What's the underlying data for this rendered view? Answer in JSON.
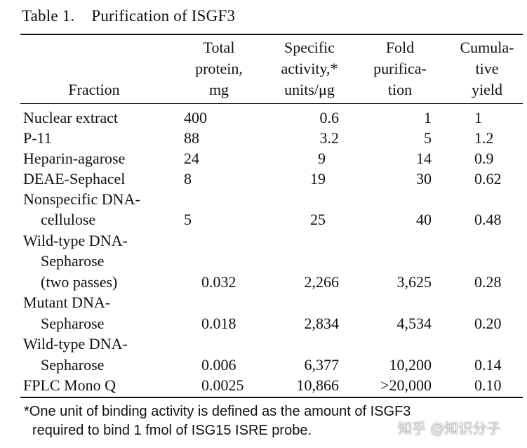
{
  "caption": {
    "number": "Table 1.",
    "title": "Purification of ISGF3"
  },
  "headers": {
    "fraction": [
      "Fraction"
    ],
    "total_protein": [
      "Total",
      "protein,",
      "mg"
    ],
    "specific_activity": [
      "Specific",
      "activity,*",
      "units/μg"
    ],
    "fold_purification": [
      "Fold",
      "purifica-",
      "tion"
    ],
    "cumulative_yield": [
      "Cumula-",
      "tive",
      "yield"
    ]
  },
  "rows": [
    {
      "fraction": [
        "Nuclear extract"
      ],
      "total": "400",
      "specific": "0.6",
      "fold": "1",
      "yield": "1"
    },
    {
      "fraction": [
        "P-11"
      ],
      "total": "88",
      "specific": "3.2",
      "fold": "5",
      "yield": "1.2"
    },
    {
      "fraction": [
        "Heparin-agarose"
      ],
      "total": "24",
      "specific": "9",
      "fold": "14",
      "yield": "0.9"
    },
    {
      "fraction": [
        "DEAE-Sephacel"
      ],
      "total": "8",
      "specific": "19",
      "fold": "30",
      "yield": "0.62"
    },
    {
      "fraction": [
        "Nonspecific DNA-",
        "cellulose"
      ],
      "total": "5",
      "specific": "25",
      "fold": "40",
      "yield": "0.48"
    },
    {
      "fraction": [
        "Wild-type DNA-",
        "Sepharose",
        "(two passes)"
      ],
      "total": "0.032",
      "specific": "2,266",
      "fold": "3,625",
      "yield": "0.28"
    },
    {
      "fraction": [
        "Mutant DNA-",
        "Sepharose"
      ],
      "total": "0.018",
      "specific": "2,834",
      "fold": "4,534",
      "yield": "0.20"
    },
    {
      "fraction": [
        "Wild-type DNA-",
        "Sepharose"
      ],
      "total": "0.006",
      "specific": "6,377",
      "fold": "10,200",
      "yield": "0.14"
    },
    {
      "fraction": [
        "FPLC Mono Q"
      ],
      "total": "0.0025",
      "specific": "10,866",
      "fold": ">20,000",
      "yield": "0.10"
    }
  ],
  "footnote": [
    "*One unit of binding activity is defined as the amount of ISGF3",
    "required to bind 1 fmol of ISG15 ISRE probe."
  ],
  "watermark": "知乎 @知识分子"
}
